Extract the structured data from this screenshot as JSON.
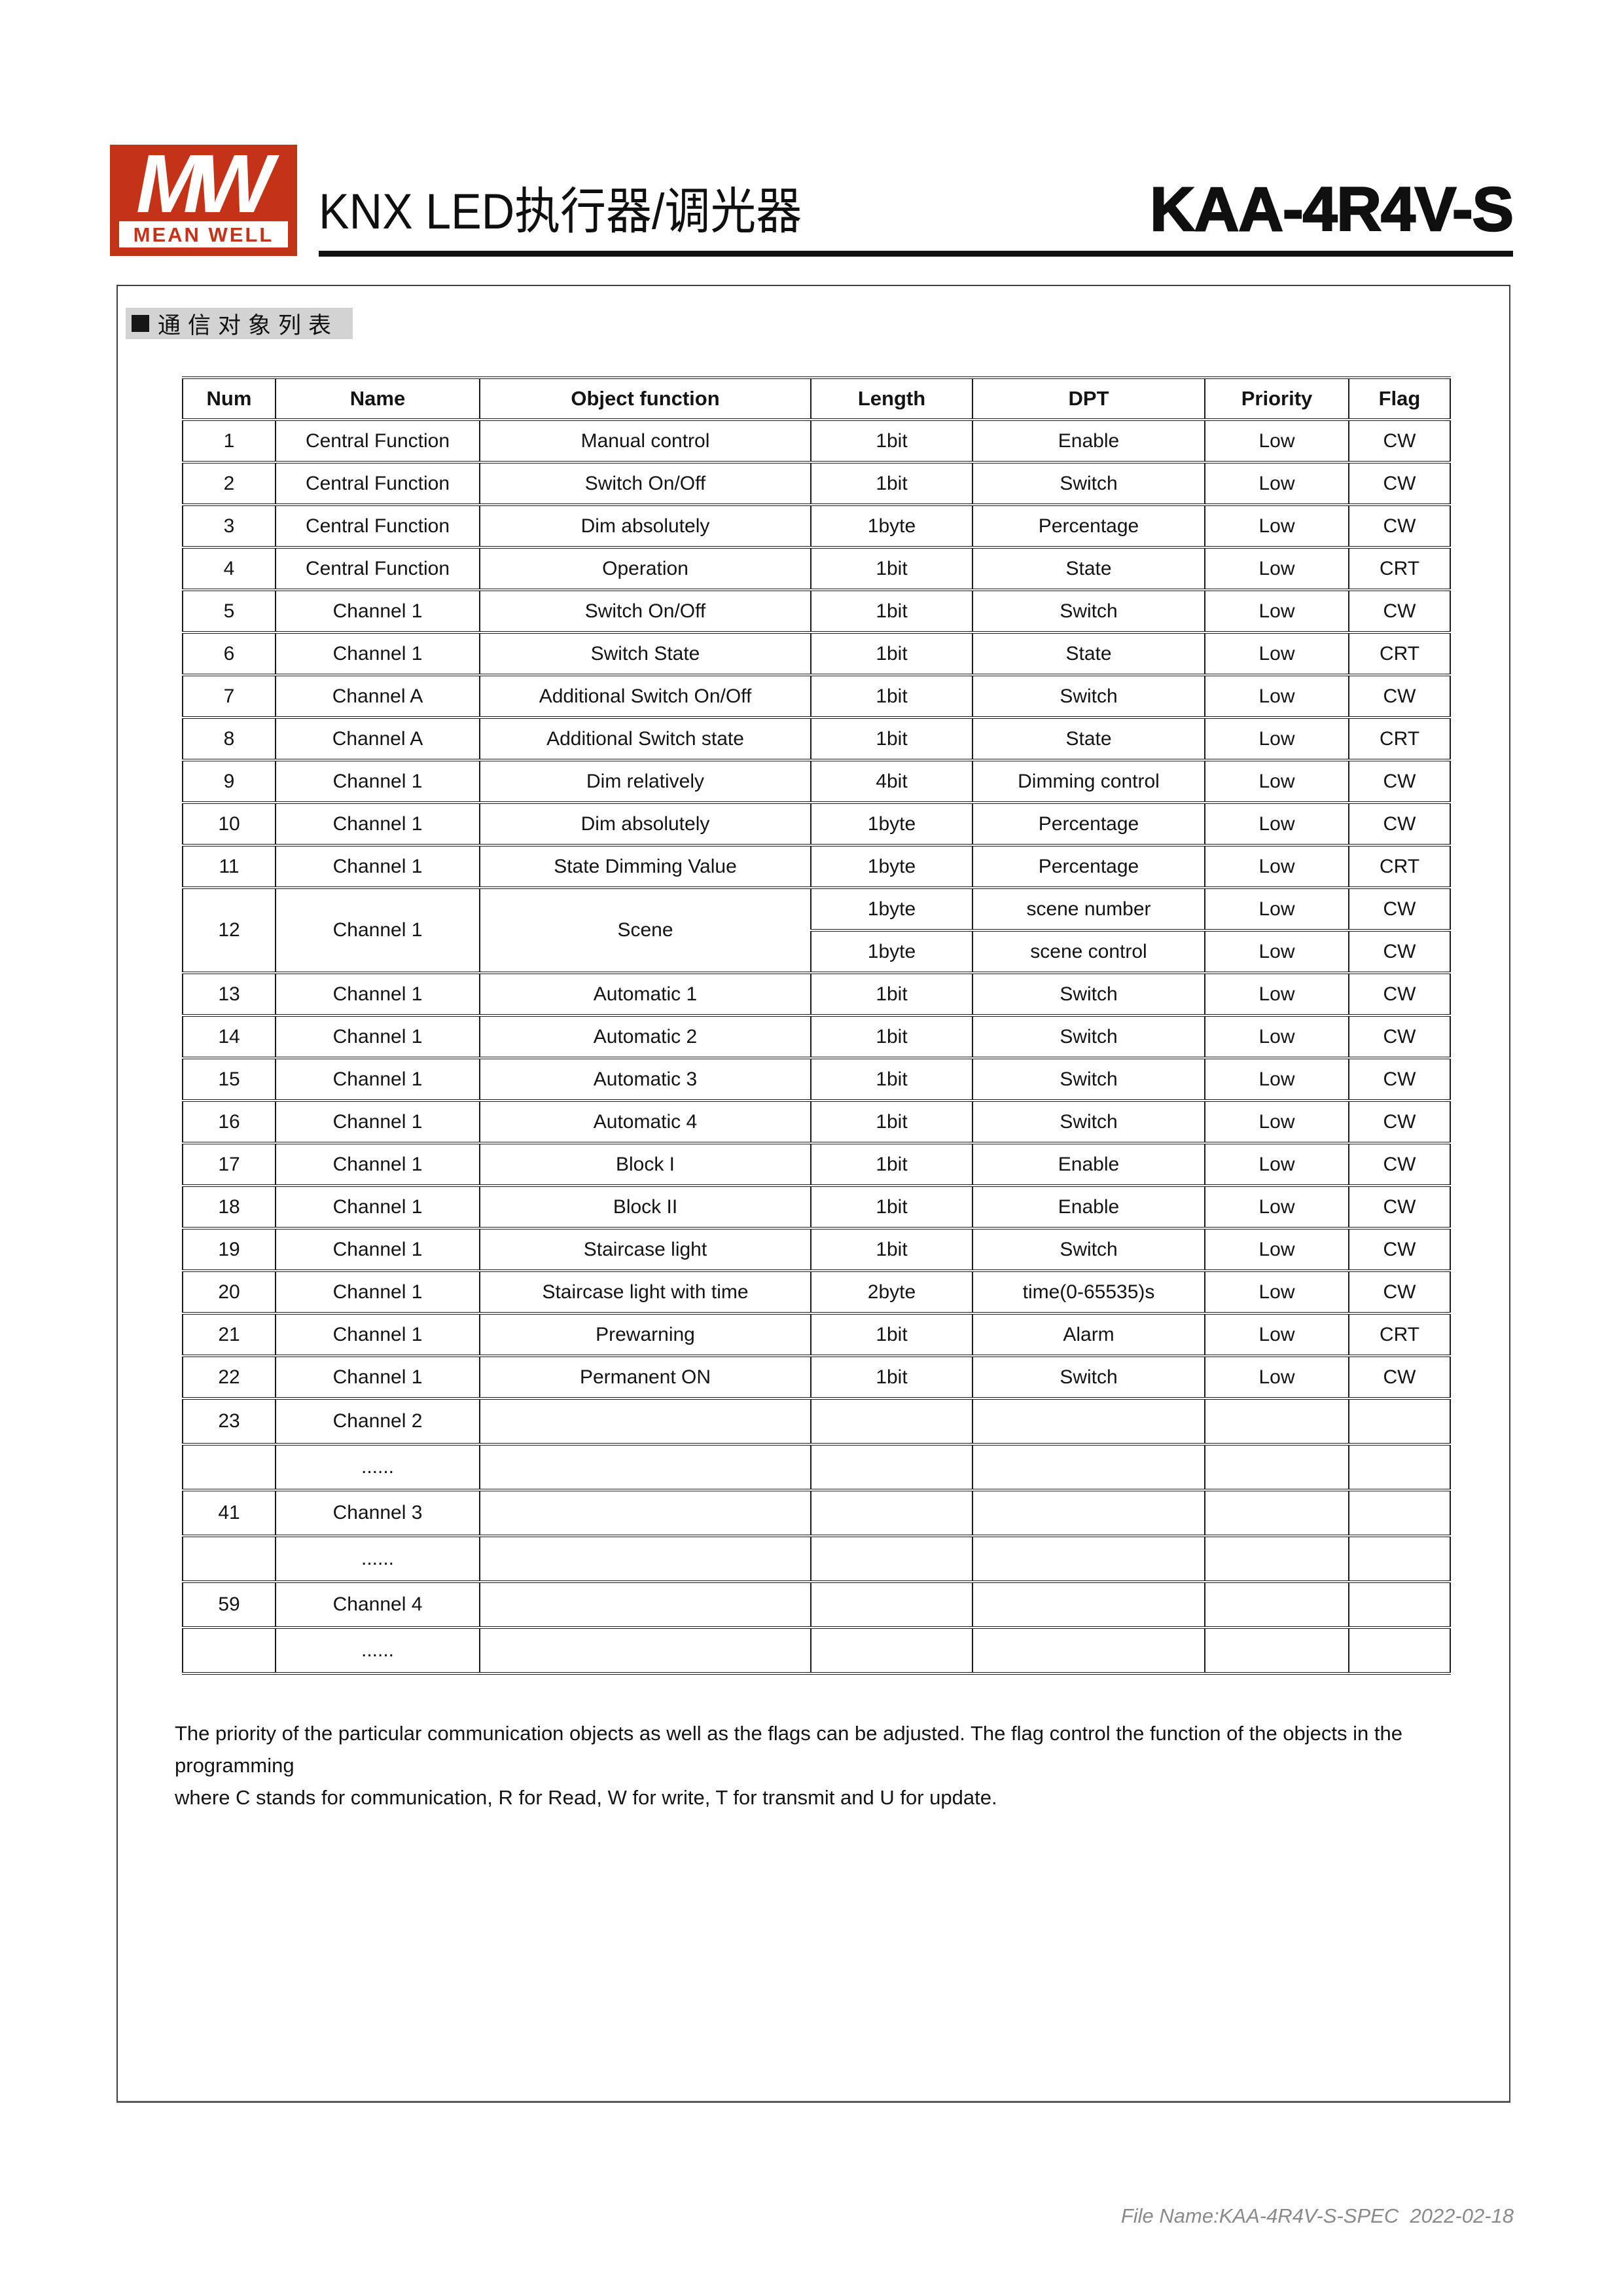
{
  "header": {
    "logo_monogram": "MW",
    "logo_brand": "MEAN WELL",
    "brand_red": "#c43318",
    "title": "KNX LED执行器/调光器",
    "model": "KAA-4R4V-S"
  },
  "section": {
    "title": "通信对象列表"
  },
  "table": {
    "columns": [
      "Num",
      "Name",
      "Object function",
      "Length",
      "DPT",
      "Priority",
      "Flag"
    ],
    "rows": [
      {
        "num": "1",
        "name": "Central Function",
        "func": "Manual control",
        "entries": [
          [
            "1bit",
            "Enable",
            "Low",
            "CW"
          ]
        ]
      },
      {
        "num": "2",
        "name": "Central Function",
        "func": "Switch On/Off",
        "entries": [
          [
            "1bit",
            "Switch",
            "Low",
            "CW"
          ]
        ]
      },
      {
        "num": "3",
        "name": "Central Function",
        "func": "Dim absolutely",
        "entries": [
          [
            "1byte",
            "Percentage",
            "Low",
            "CW"
          ]
        ]
      },
      {
        "num": "4",
        "name": "Central Function",
        "func": "Operation",
        "entries": [
          [
            "1bit",
            "State",
            "Low",
            "CRT"
          ]
        ]
      },
      {
        "num": "5",
        "name": "Channel 1",
        "func": "Switch On/Off",
        "entries": [
          [
            "1bit",
            "Switch",
            "Low",
            "CW"
          ]
        ]
      },
      {
        "num": "6",
        "name": "Channel 1",
        "func": "Switch State",
        "entries": [
          [
            "1bit",
            "State",
            "Low",
            "CRT"
          ]
        ]
      },
      {
        "num": "7",
        "name": "Channel A",
        "func": "Additional Switch On/Off",
        "entries": [
          [
            "1bit",
            "Switch",
            "Low",
            "CW"
          ]
        ]
      },
      {
        "num": "8",
        "name": "Channel A",
        "func": "Additional Switch state",
        "entries": [
          [
            "1bit",
            "State",
            "Low",
            "CRT"
          ]
        ]
      },
      {
        "num": "9",
        "name": "Channel 1",
        "func": "Dim relatively",
        "entries": [
          [
            "4bit",
            "Dimming control",
            "Low",
            "CW"
          ]
        ]
      },
      {
        "num": "10",
        "name": "Channel 1",
        "func": "Dim absolutely",
        "entries": [
          [
            "1byte",
            "Percentage",
            "Low",
            "CW"
          ]
        ]
      },
      {
        "num": "11",
        "name": "Channel 1",
        "func": "State Dimming Value",
        "entries": [
          [
            "1byte",
            "Percentage",
            "Low",
            "CRT"
          ]
        ]
      },
      {
        "num": "12",
        "name": "Channel 1",
        "func": "Scene",
        "entries": [
          [
            "1byte",
            "scene number",
            "Low",
            "CW"
          ],
          [
            "1byte",
            "scene control",
            "Low",
            "CW"
          ]
        ]
      },
      {
        "num": "13",
        "name": "Channel 1",
        "func": "Automatic 1",
        "entries": [
          [
            "1bit",
            "Switch",
            "Low",
            "CW"
          ]
        ]
      },
      {
        "num": "14",
        "name": "Channel 1",
        "func": "Automatic 2",
        "entries": [
          [
            "1bit",
            "Switch",
            "Low",
            "CW"
          ]
        ]
      },
      {
        "num": "15",
        "name": "Channel 1",
        "func": "Automatic 3",
        "entries": [
          [
            "1bit",
            "Switch",
            "Low",
            "CW"
          ]
        ]
      },
      {
        "num": "16",
        "name": "Channel 1",
        "func": "Automatic 4",
        "entries": [
          [
            "1bit",
            "Switch",
            "Low",
            "CW"
          ]
        ]
      },
      {
        "num": "17",
        "name": "Channel 1",
        "func": "Block I",
        "entries": [
          [
            "1bit",
            "Enable",
            "Low",
            "CW"
          ]
        ]
      },
      {
        "num": "18",
        "name": "Channel 1",
        "func": "Block II",
        "entries": [
          [
            "1bit",
            "Enable",
            "Low",
            "CW"
          ]
        ]
      },
      {
        "num": "19",
        "name": "Channel 1",
        "func": "Staircase light",
        "entries": [
          [
            "1bit",
            "Switch",
            "Low",
            "CW"
          ]
        ]
      },
      {
        "num": "20",
        "name": "Channel 1",
        "func": "Staircase light with time",
        "entries": [
          [
            "2byte",
            "time(0-65535)s",
            "Low",
            "CW"
          ]
        ]
      },
      {
        "num": "21",
        "name": "Channel 1",
        "func": "Prewarning",
        "entries": [
          [
            "1bit",
            "Alarm",
            "Low",
            "CRT"
          ]
        ]
      },
      {
        "num": "22",
        "name": "Channel 1",
        "func": "Permanent ON",
        "entries": [
          [
            "1bit",
            "Switch",
            "Low",
            "CW"
          ]
        ]
      },
      {
        "num": "23",
        "name": "Channel 2",
        "func": "",
        "entries": [
          [
            "",
            "",
            "",
            ""
          ]
        ],
        "tall": true
      },
      {
        "num": "",
        "name": "......",
        "func": "",
        "entries": [
          [
            "",
            "",
            "",
            ""
          ]
        ],
        "tall": true
      },
      {
        "num": "41",
        "name": "Channel 3",
        "func": "",
        "entries": [
          [
            "",
            "",
            "",
            ""
          ]
        ],
        "tall": true
      },
      {
        "num": "",
        "name": "......",
        "func": "",
        "entries": [
          [
            "",
            "",
            "",
            ""
          ]
        ],
        "tall": true
      },
      {
        "num": "59",
        "name": "Channel 4",
        "func": "",
        "entries": [
          [
            "",
            "",
            "",
            ""
          ]
        ],
        "tall": true
      },
      {
        "num": "",
        "name": "......",
        "func": "",
        "entries": [
          [
            "",
            "",
            "",
            ""
          ]
        ],
        "tall": true
      }
    ]
  },
  "note": {
    "line1": "The priority of the particular communication objects as well as the flags can be adjusted. The flag control the function of the objects in the programming",
    "line2": "where C stands for communication, R for Read, W for write, T for transmit and U for update."
  },
  "footer": {
    "file_info": "File Name:KAA-4R4V-S-SPEC  2022-02-18"
  }
}
